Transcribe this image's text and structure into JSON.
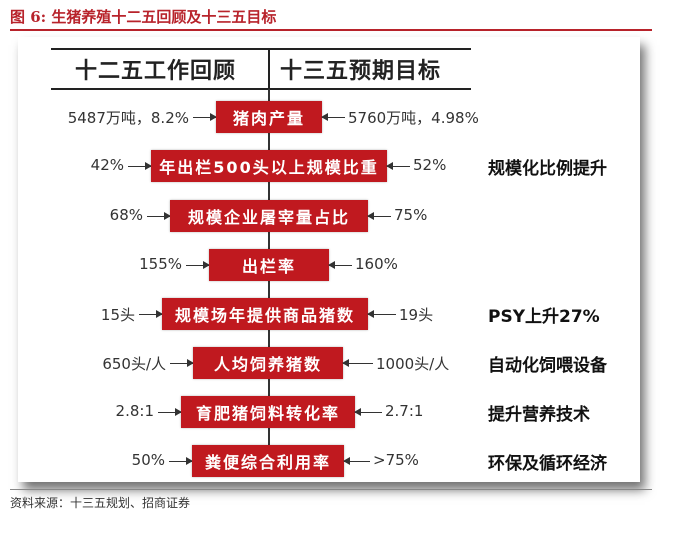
{
  "figure": {
    "title": "图 6:  生猪养殖十二五回顾及十三五目标",
    "source": "资料来源：十三五规划、招商证券"
  },
  "header": {
    "left": "十二五工作回顾",
    "right": "十三五预期目标"
  },
  "rows": [
    {
      "label": "猪肉产量",
      "left_value": "5487万吨，8.2%",
      "right_value": "5760万吨，4.98%",
      "note": ""
    },
    {
      "label": "年出栏500头以上规模比重",
      "left_value": "42%",
      "right_value": "52%",
      "note": "规模化比例提升"
    },
    {
      "label": "规模企业屠宰量占比",
      "left_value": "68%",
      "right_value": "75%",
      "note": ""
    },
    {
      "label": "出栏率",
      "left_value": "155%",
      "right_value": "160%",
      "note": ""
    },
    {
      "label": "规模场年提供商品猪数",
      "left_value": "15头",
      "right_value": "19头",
      "note": "PSY上升27%"
    },
    {
      "label": "人均饲养猪数",
      "left_value": "650头/人",
      "right_value": "1000头/人",
      "note": "自动化饲喂设备"
    },
    {
      "label": "育肥猪饲料转化率",
      "left_value": "2.8:1",
      "right_value": "2.7:1",
      "note": "提升营养技术"
    },
    {
      "label": "粪便综合利用率",
      "left_value": "50%",
      "right_value": ">75%",
      "note": "环保及循环经济"
    }
  ],
  "colors": {
    "accent": "#c0191f",
    "title": "#b8232b"
  }
}
